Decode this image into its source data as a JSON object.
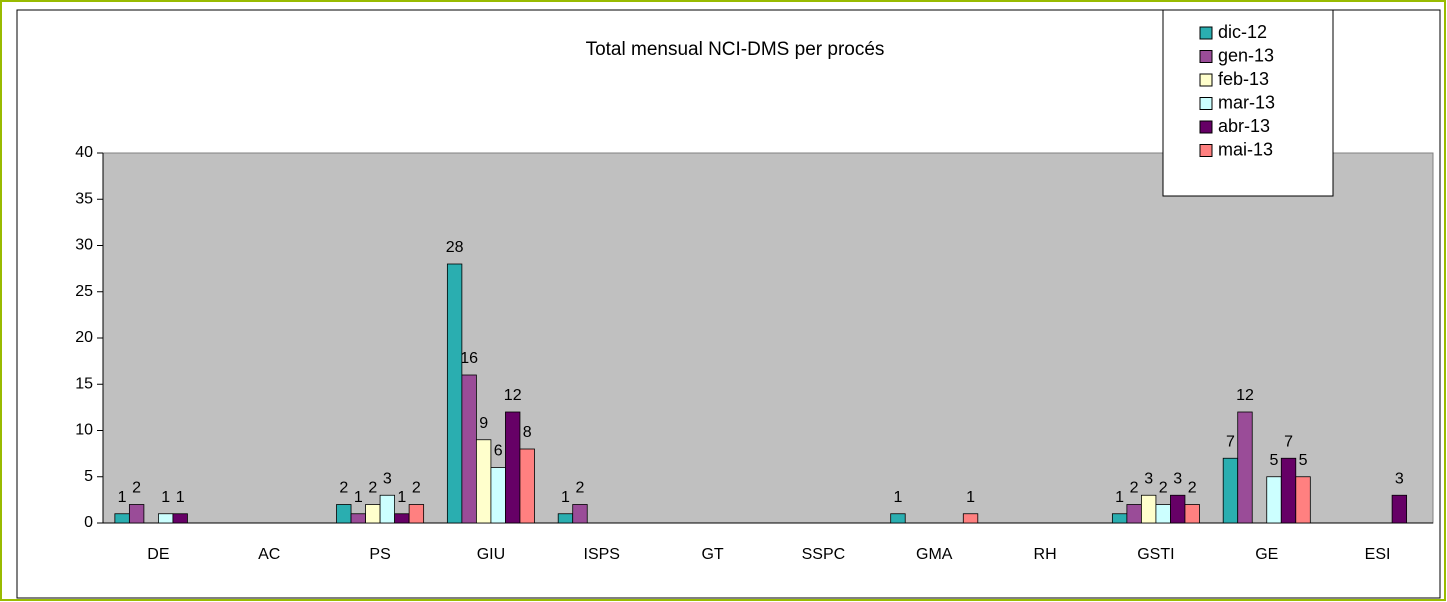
{
  "chart_data": {
    "type": "bar",
    "title": "Total mensual NCI-DMS per procés",
    "categories": [
      "DE",
      "AC",
      "PS",
      "GIU",
      "ISPS",
      "GT",
      "SSPC",
      "GMA",
      "RH",
      "GSTI",
      "GE",
      "ESI"
    ],
    "series": [
      {
        "name": "dic-12",
        "color": "#2aaeb0",
        "values": [
          1,
          null,
          2,
          28,
          1,
          null,
          null,
          1,
          null,
          1,
          7,
          null
        ]
      },
      {
        "name": "gen-13",
        "color": "#9a4c98",
        "values": [
          2,
          null,
          1,
          16,
          2,
          null,
          null,
          null,
          null,
          2,
          12,
          null
        ]
      },
      {
        "name": "feb-13",
        "color": "#ffffcc",
        "values": [
          null,
          null,
          2,
          9,
          null,
          null,
          null,
          null,
          null,
          3,
          null,
          null
        ]
      },
      {
        "name": "mar-13",
        "color": "#ccffff",
        "values": [
          1,
          null,
          3,
          6,
          null,
          null,
          null,
          null,
          null,
          2,
          5,
          null
        ]
      },
      {
        "name": "abr-13",
        "color": "#660066",
        "values": [
          1,
          null,
          1,
          12,
          null,
          null,
          null,
          null,
          null,
          3,
          7,
          3
        ]
      },
      {
        "name": "mai-13",
        "color": "#ff8080",
        "values": [
          null,
          null,
          2,
          8,
          null,
          null,
          null,
          1,
          null,
          2,
          5,
          null
        ]
      }
    ],
    "ylim": [
      0,
      40
    ],
    "yticks": [
      0,
      5,
      10,
      15,
      20,
      25,
      30,
      35,
      40
    ],
    "grid": false
  }
}
